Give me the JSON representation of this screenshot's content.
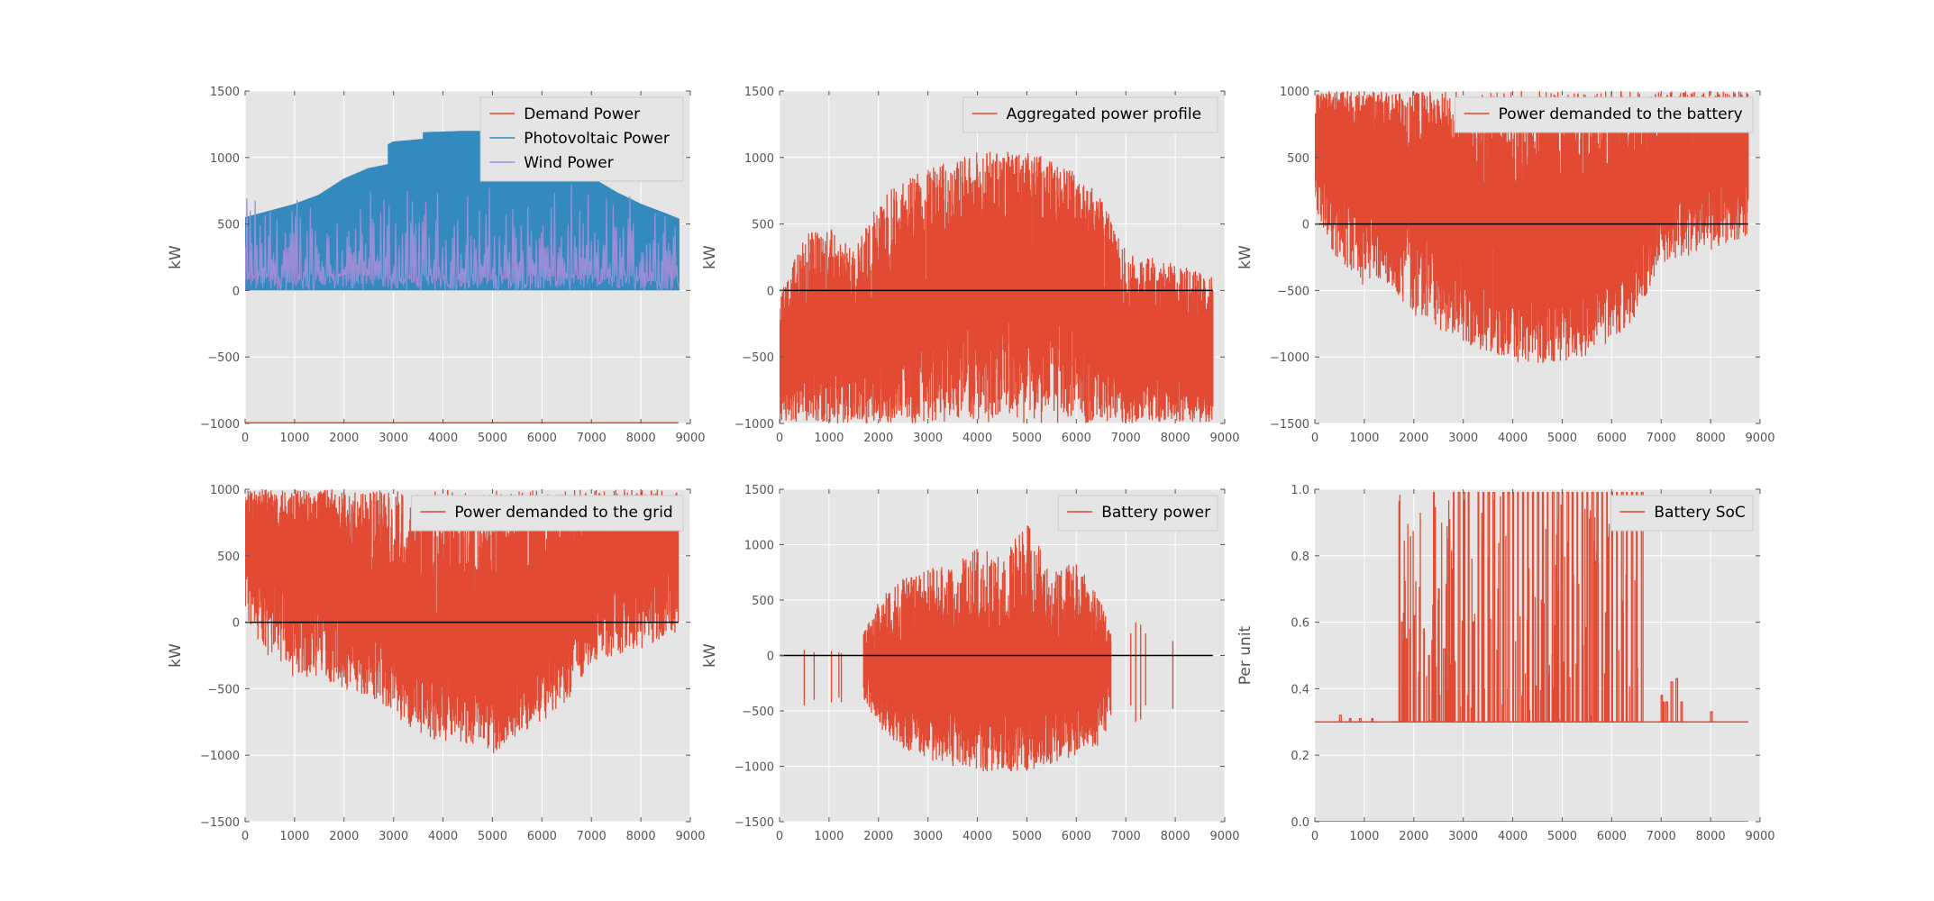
{
  "colors": {
    "panel_bg": "#e5e5e5",
    "grid": "#ffffff",
    "red": "#e24a33",
    "blue": "#348abd",
    "purple": "#988ed5",
    "zero_line": "#000000"
  },
  "chart_data": [
    {
      "type": "line",
      "ylabel": "kW",
      "xlim": [
        0,
        9000
      ],
      "ylim": [
        -1000,
        1500
      ],
      "xticks": [
        "0",
        "1000",
        "2000",
        "3000",
        "4000",
        "5000",
        "6000",
        "7000",
        "8000",
        "9000"
      ],
      "yticks": [
        "−1000",
        "−500",
        "0",
        "500",
        "1000",
        "1500"
      ],
      "legend": [
        "Demand Power",
        "Photovoltaic Power",
        "Wind Power"
      ],
      "legend_position": "top-right",
      "grid": true,
      "series": [
        {
          "name": "Photovoltaic Power",
          "style": "daily-fill",
          "color": "blue",
          "envelope": {
            "x": [
              0,
              500,
              1000,
              1500,
              2000,
              2500,
              2900,
              2901,
              3000,
              3600,
              3601,
              4400,
              5000,
              5500,
              6000,
              6500,
              7000,
              7500,
              8000,
              8500,
              8760
            ],
            "y": [
              550,
              600,
              650,
              720,
              840,
              920,
              950,
              1100,
              1120,
              1140,
              1190,
              1200,
              1200,
              1150,
              1100,
              980,
              850,
              740,
              650,
              580,
              540
            ]
          },
          "min": 0
        },
        {
          "name": "Wind Power",
          "style": "spikes",
          "color": "purple",
          "min": 0,
          "max": 860,
          "n": 260
        },
        {
          "name": "Demand Power",
          "style": "flat",
          "color": "red",
          "x": [
            0,
            8760
          ],
          "y": [
            -995,
            -995
          ]
        }
      ]
    },
    {
      "type": "line",
      "ylabel": "kW",
      "xlim": [
        0,
        9000
      ],
      "ylim": [
        -1000,
        1500
      ],
      "xticks": [
        "0",
        "1000",
        "2000",
        "3000",
        "4000",
        "5000",
        "6000",
        "7000",
        "8000",
        "9000"
      ],
      "yticks": [
        "−1000",
        "−500",
        "0",
        "500",
        "1000",
        "1500"
      ],
      "legend": [
        "Aggregated power profile"
      ],
      "legend_position": "top-right",
      "grid": true,
      "zero_line": true,
      "series": [
        {
          "name": "Aggregated power profile",
          "style": "band",
          "color": "red",
          "upper": {
            "x": [
              0,
              500,
              1000,
              1500,
              2000,
              2500,
              3000,
              3500,
              4000,
              4500,
              5000,
              5500,
              6000,
              6500,
              7000,
              7500,
              8000,
              8760
            ],
            "y": [
              -50,
              450,
              480,
              300,
              700,
              820,
              920,
              980,
              1040,
              1050,
              1040,
              990,
              900,
              700,
              300,
              250,
              200,
              100
            ]
          },
          "lower": {
            "x": [
              0,
              500,
              1000,
              1500,
              2000,
              2500,
              3000,
              3500,
              4000,
              4500,
              5000,
              5500,
              6000,
              6500,
              7000,
              7500,
              8000,
              8760
            ],
            "y": [
              -1000,
              -1000,
              -1000,
              -1000,
              -1000,
              -1000,
              -1000,
              -1000,
              -1000,
              -1000,
              -1000,
              -1000,
              -1000,
              -1000,
              -1000,
              -1000,
              -1000,
              -1000
            ]
          },
          "core": {
            "x": [
              0,
              2000,
              3000,
              4000,
              5000,
              6000,
              6500,
              7000,
              8760
            ],
            "y": [
              -500,
              -300,
              -150,
              200,
              200,
              150,
              -100,
              -400,
              -600
            ]
          }
        }
      ]
    },
    {
      "type": "line",
      "ylabel": "kW",
      "xlim": [
        0,
        9000
      ],
      "ylim": [
        -1500,
        1000
      ],
      "xticks": [
        "0",
        "1000",
        "2000",
        "3000",
        "4000",
        "5000",
        "6000",
        "7000",
        "8000",
        "9000"
      ],
      "yticks": [
        "−1500",
        "−1000",
        "−500",
        "0",
        "500",
        "1000"
      ],
      "legend": [
        "Power demanded to the battery"
      ],
      "legend_position": "top-right",
      "grid": true,
      "zero_line": true,
      "series": [
        {
          "name": "Power demanded to the battery",
          "style": "band",
          "color": "red",
          "upper": {
            "x": [
              0,
              1000,
              2000,
              3000,
              4000,
              5000,
              6000,
              7000,
              8760
            ],
            "y": [
              1000,
              1000,
              1000,
              1000,
              1000,
              1000,
              1000,
              1000,
              1000
            ]
          },
          "lower": {
            "x": [
              0,
              500,
              1000,
              1500,
              2000,
              2500,
              3000,
              3500,
              4000,
              4500,
              5000,
              5500,
              6000,
              6500,
              7000,
              7500,
              8000,
              8760
            ],
            "y": [
              50,
              -300,
              -480,
              -450,
              -700,
              -800,
              -900,
              -980,
              -1040,
              -1050,
              -1040,
              -990,
              -880,
              -700,
              -300,
              -250,
              -200,
              -100
            ]
          },
          "core": {
            "x": [
              0,
              1000,
              2000,
              3000,
              4000,
              5000,
              6000,
              7000,
              8760
            ],
            "y": [
              700,
              600,
              300,
              100,
              -200,
              -200,
              -100,
              400,
              700
            ]
          }
        }
      ]
    },
    {
      "type": "line",
      "ylabel": "kW",
      "xlim": [
        0,
        9000
      ],
      "ylim": [
        -1500,
        1000
      ],
      "xticks": [
        "0",
        "1000",
        "2000",
        "3000",
        "4000",
        "5000",
        "6000",
        "7000",
        "8000",
        "9000"
      ],
      "yticks": [
        "−1500",
        "−1000",
        "−500",
        "0",
        "500",
        "1000"
      ],
      "legend": [
        "Power demanded to the grid"
      ],
      "legend_position": "top-right",
      "grid": true,
      "zero_line": true,
      "series": [
        {
          "name": "Power demanded to the grid",
          "style": "band",
          "color": "red",
          "upper": {
            "x": [
              0,
              1000,
              2000,
              3000,
              4000,
              5000,
              6000,
              7000,
              8760
            ],
            "y": [
              1000,
              1000,
              1000,
              1000,
              1000,
              1000,
              1000,
              1000,
              1000
            ]
          },
          "lower": {
            "x": [
              0,
              500,
              1000,
              1500,
              2000,
              2500,
              3000,
              3500,
              4000,
              4500,
              5000,
              5500,
              6000,
              6500,
              7000,
              7500,
              8000,
              8760
            ],
            "y": [
              50,
              -300,
              -420,
              -400,
              -520,
              -550,
              -700,
              -850,
              -900,
              -920,
              -1000,
              -850,
              -750,
              -600,
              -300,
              -250,
              -200,
              -80
            ]
          },
          "core": {
            "x": [
              0,
              1000,
              2000,
              3000,
              4000,
              5000,
              6000,
              7000,
              8760
            ],
            "y": [
              700,
              550,
              300,
              50,
              -150,
              -200,
              -100,
              400,
              700
            ]
          }
        }
      ]
    },
    {
      "type": "line",
      "ylabel": "kW",
      "xlim": [
        0,
        9000
      ],
      "ylim": [
        -1500,
        1500
      ],
      "xticks": [
        "0",
        "1000",
        "2000",
        "3000",
        "4000",
        "5000",
        "6000",
        "7000",
        "8000",
        "9000"
      ],
      "yticks": [
        "−1500",
        "−1000",
        "−500",
        "0",
        "500",
        "1000",
        "1500"
      ],
      "legend": [
        "Battery power"
      ],
      "legend_position": "top-right",
      "grid": true,
      "zero_line": true,
      "series": [
        {
          "name": "Battery power",
          "style": "band",
          "color": "red",
          "upper": {
            "x": [
              1700,
              2000,
              2500,
              3000,
              3500,
              4000,
              4500,
              5000,
              5500,
              6000,
              6500,
              6700
            ],
            "y": [
              200,
              500,
              700,
              800,
              800,
              980,
              900,
              1230,
              750,
              850,
              500,
              200
            ]
          },
          "lower": {
            "x": [
              1700,
              2000,
              2500,
              3000,
              3500,
              4000,
              4500,
              5000,
              5500,
              6000,
              6500,
              6700
            ],
            "y": [
              -400,
              -650,
              -850,
              -950,
              -1000,
              -1050,
              -1050,
              -1040,
              -1000,
              -900,
              -800,
              -600
            ]
          },
          "core": {
            "x": [
              1700,
              3000,
              4000,
              5000,
              6000,
              6700
            ],
            "y": [
              -100,
              -200,
              -300,
              -300,
              -200,
              -100
            ]
          },
          "sparse_x": [
            500,
            700,
            1050,
            1200,
            1250,
            7100,
            7200,
            7300,
            7400,
            7950
          ],
          "sparse_lo": [
            -450,
            -400,
            -420,
            -380,
            -420,
            -450,
            -600,
            -580,
            -450,
            -480
          ],
          "sparse_hi": [
            50,
            30,
            40,
            30,
            20,
            200,
            300,
            280,
            200,
            130
          ]
        }
      ]
    },
    {
      "type": "line",
      "ylabel": "Per unit",
      "xlim": [
        0,
        9000
      ],
      "ylim": [
        0.0,
        1.0
      ],
      "xticks": [
        "0",
        "1000",
        "2000",
        "3000",
        "4000",
        "5000",
        "6000",
        "7000",
        "8000",
        "9000"
      ],
      "yticks": [
        "0.0",
        "0.2",
        "0.4",
        "0.6",
        "0.8",
        "1.0"
      ],
      "legend": [
        "Battery SoC"
      ],
      "legend_position": "top-right",
      "grid": true,
      "zero_line": false,
      "series": [
        {
          "name": "Battery SoC",
          "style": "soc",
          "color": "red",
          "baseline": 0.3,
          "dense_range": [
            1700,
            6600
          ],
          "peaks_x": [
            500,
            700,
            900,
            1150,
            1750,
            1850,
            2000,
            2100,
            2200,
            2300,
            2400,
            2500,
            2600,
            2700,
            2800,
            2900,
            3000,
            3100,
            3200,
            3300,
            3400,
            3500,
            3600,
            3700,
            3800,
            3900,
            4000,
            4100,
            4200,
            4300,
            4400,
            4500,
            4600,
            4700,
            4800,
            4900,
            5000,
            5100,
            5200,
            5300,
            5400,
            5500,
            5600,
            5700,
            5800,
            5900,
            6000,
            6100,
            6200,
            6300,
            6400,
            6500,
            6600,
            7000,
            7050,
            7100,
            7200,
            7300,
            7400,
            8000
          ],
          "peaks_y": [
            0.32,
            0.31,
            0.31,
            0.31,
            0.6,
            0.55,
            0.62,
            0.45,
            0.58,
            0.5,
            0.99,
            0.7,
            0.52,
            0.85,
            0.99,
            0.99,
            0.99,
            0.99,
            0.6,
            0.99,
            0.99,
            0.99,
            0.99,
            0.7,
            0.99,
            0.99,
            0.99,
            0.99,
            0.99,
            0.99,
            0.99,
            0.99,
            0.99,
            0.99,
            0.99,
            0.99,
            0.99,
            0.99,
            0.99,
            0.99,
            0.99,
            0.99,
            0.99,
            0.99,
            0.99,
            0.99,
            0.99,
            0.99,
            0.99,
            0.99,
            0.99,
            0.99,
            0.99,
            0.38,
            0.36,
            0.36,
            0.42,
            0.43,
            0.36,
            0.33
          ]
        }
      ]
    }
  ]
}
